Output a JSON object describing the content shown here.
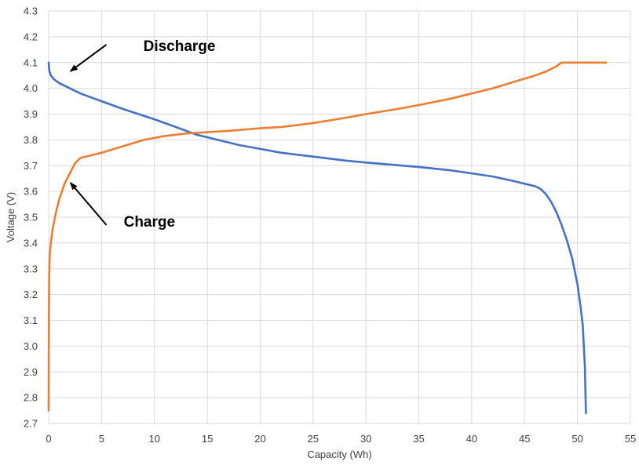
{
  "chart_data": {
    "type": "line",
    "title": "",
    "xlabel": "Capacity (Wh)",
    "ylabel": "Voltage (V)",
    "xlim": [
      0,
      55
    ],
    "ylim": [
      2.7,
      4.3
    ],
    "x_ticks": [
      0,
      5,
      10,
      15,
      20,
      25,
      30,
      35,
      40,
      45,
      50,
      55
    ],
    "y_ticks": [
      2.7,
      2.8,
      2.9,
      3.0,
      3.1,
      3.2,
      3.3,
      3.4,
      3.5,
      3.6,
      3.7,
      3.8,
      3.9,
      4.0,
      4.1,
      4.2,
      4.3
    ],
    "x_tick_labels": [
      "0",
      "5",
      "10",
      "15",
      "20",
      "25",
      "30",
      "35",
      "40",
      "45",
      "50",
      "55"
    ],
    "y_tick_labels": [
      "2.7",
      "2.8",
      "2.9",
      "3.0",
      "3.1",
      "3.2",
      "3.3",
      "3.4",
      "3.5",
      "3.6",
      "3.7",
      "3.8",
      "3.9",
      "4.0",
      "4.1",
      "4.2",
      "4.3"
    ],
    "grid": true,
    "legend": "none",
    "series": [
      {
        "name": "Discharge",
        "color": "#4472c4",
        "x": [
          0,
          0.05,
          0.2,
          0.5,
          1,
          2,
          3,
          5,
          7,
          10,
          12,
          14,
          16,
          18,
          20,
          22,
          25,
          28,
          30,
          35,
          38,
          40,
          42,
          44,
          45,
          46,
          46.5,
          47,
          47.5,
          48,
          48.5,
          49,
          49.5,
          50,
          50.3,
          50.5,
          50.6,
          50.7,
          50.75,
          50.8
        ],
        "y": [
          4.1,
          4.07,
          4.05,
          4.035,
          4.02,
          4.0,
          3.98,
          3.95,
          3.92,
          3.88,
          3.85,
          3.82,
          3.8,
          3.78,
          3.765,
          3.75,
          3.735,
          3.72,
          3.712,
          3.695,
          3.682,
          3.67,
          3.658,
          3.64,
          3.63,
          3.62,
          3.61,
          3.59,
          3.56,
          3.52,
          3.47,
          3.41,
          3.34,
          3.24,
          3.15,
          3.08,
          3.0,
          2.92,
          2.83,
          2.74
        ]
      },
      {
        "name": "Charge",
        "color": "#ed7d31",
        "x": [
          0,
          0.02,
          0.05,
          0.1,
          0.2,
          0.4,
          0.7,
          1,
          1.5,
          2,
          2.5,
          3,
          4,
          5,
          7,
          9,
          11,
          13,
          15,
          17,
          20,
          22,
          25,
          28,
          30,
          33,
          35,
          38,
          40,
          42,
          44,
          46,
          47,
          48,
          48.5,
          49,
          50,
          51,
          52,
          52.7
        ],
        "y": [
          2.75,
          3.1,
          3.28,
          3.35,
          3.4,
          3.46,
          3.52,
          3.57,
          3.63,
          3.67,
          3.71,
          3.73,
          3.74,
          3.75,
          3.775,
          3.8,
          3.815,
          3.825,
          3.83,
          3.835,
          3.845,
          3.85,
          3.865,
          3.885,
          3.9,
          3.92,
          3.935,
          3.96,
          3.98,
          4.0,
          4.025,
          4.05,
          4.065,
          4.085,
          4.1,
          4.1,
          4.1,
          4.1,
          4.1,
          4.1
        ]
      }
    ],
    "annotations": [
      {
        "text": "Discharge",
        "points_to": {
          "x": 1.9,
          "y": 4.06
        }
      },
      {
        "text": "Charge",
        "points_to": {
          "x": 1.9,
          "y": 3.64
        }
      }
    ]
  }
}
